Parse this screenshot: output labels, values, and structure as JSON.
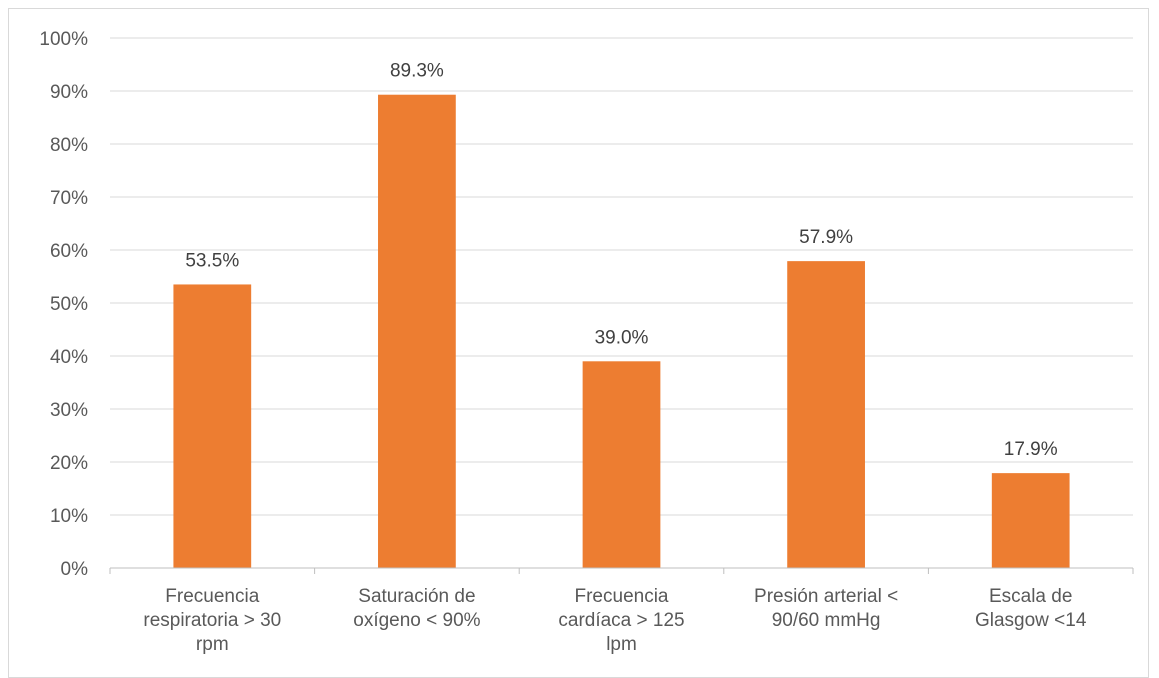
{
  "chart_data": {
    "type": "bar",
    "categories": [
      [
        "Frecuencia",
        "respiratoria > 30",
        "rpm"
      ],
      [
        "Saturación de",
        "oxígeno < 90%"
      ],
      [
        "Frecuencia",
        "cardíaca > 125",
        "lpm"
      ],
      [
        "Presión arterial <",
        "90/60 mmHg"
      ],
      [
        "Escala de",
        "Glasgow <14"
      ]
    ],
    "values": [
      53.5,
      89.3,
      39.0,
      57.9,
      17.9
    ],
    "data_labels": [
      "53.5%",
      "89.3%",
      "39.0%",
      "57.9%",
      "17.9%"
    ],
    "y_ticks": [
      "0%",
      "10%",
      "20%",
      "30%",
      "40%",
      "50%",
      "60%",
      "70%",
      "80%",
      "90%",
      "100%"
    ],
    "ylim": [
      0,
      100
    ],
    "grid": true,
    "colors": {
      "bar": "#ED7D31",
      "grid": "#d9d9d9",
      "axis": "#bfbfbf"
    }
  }
}
